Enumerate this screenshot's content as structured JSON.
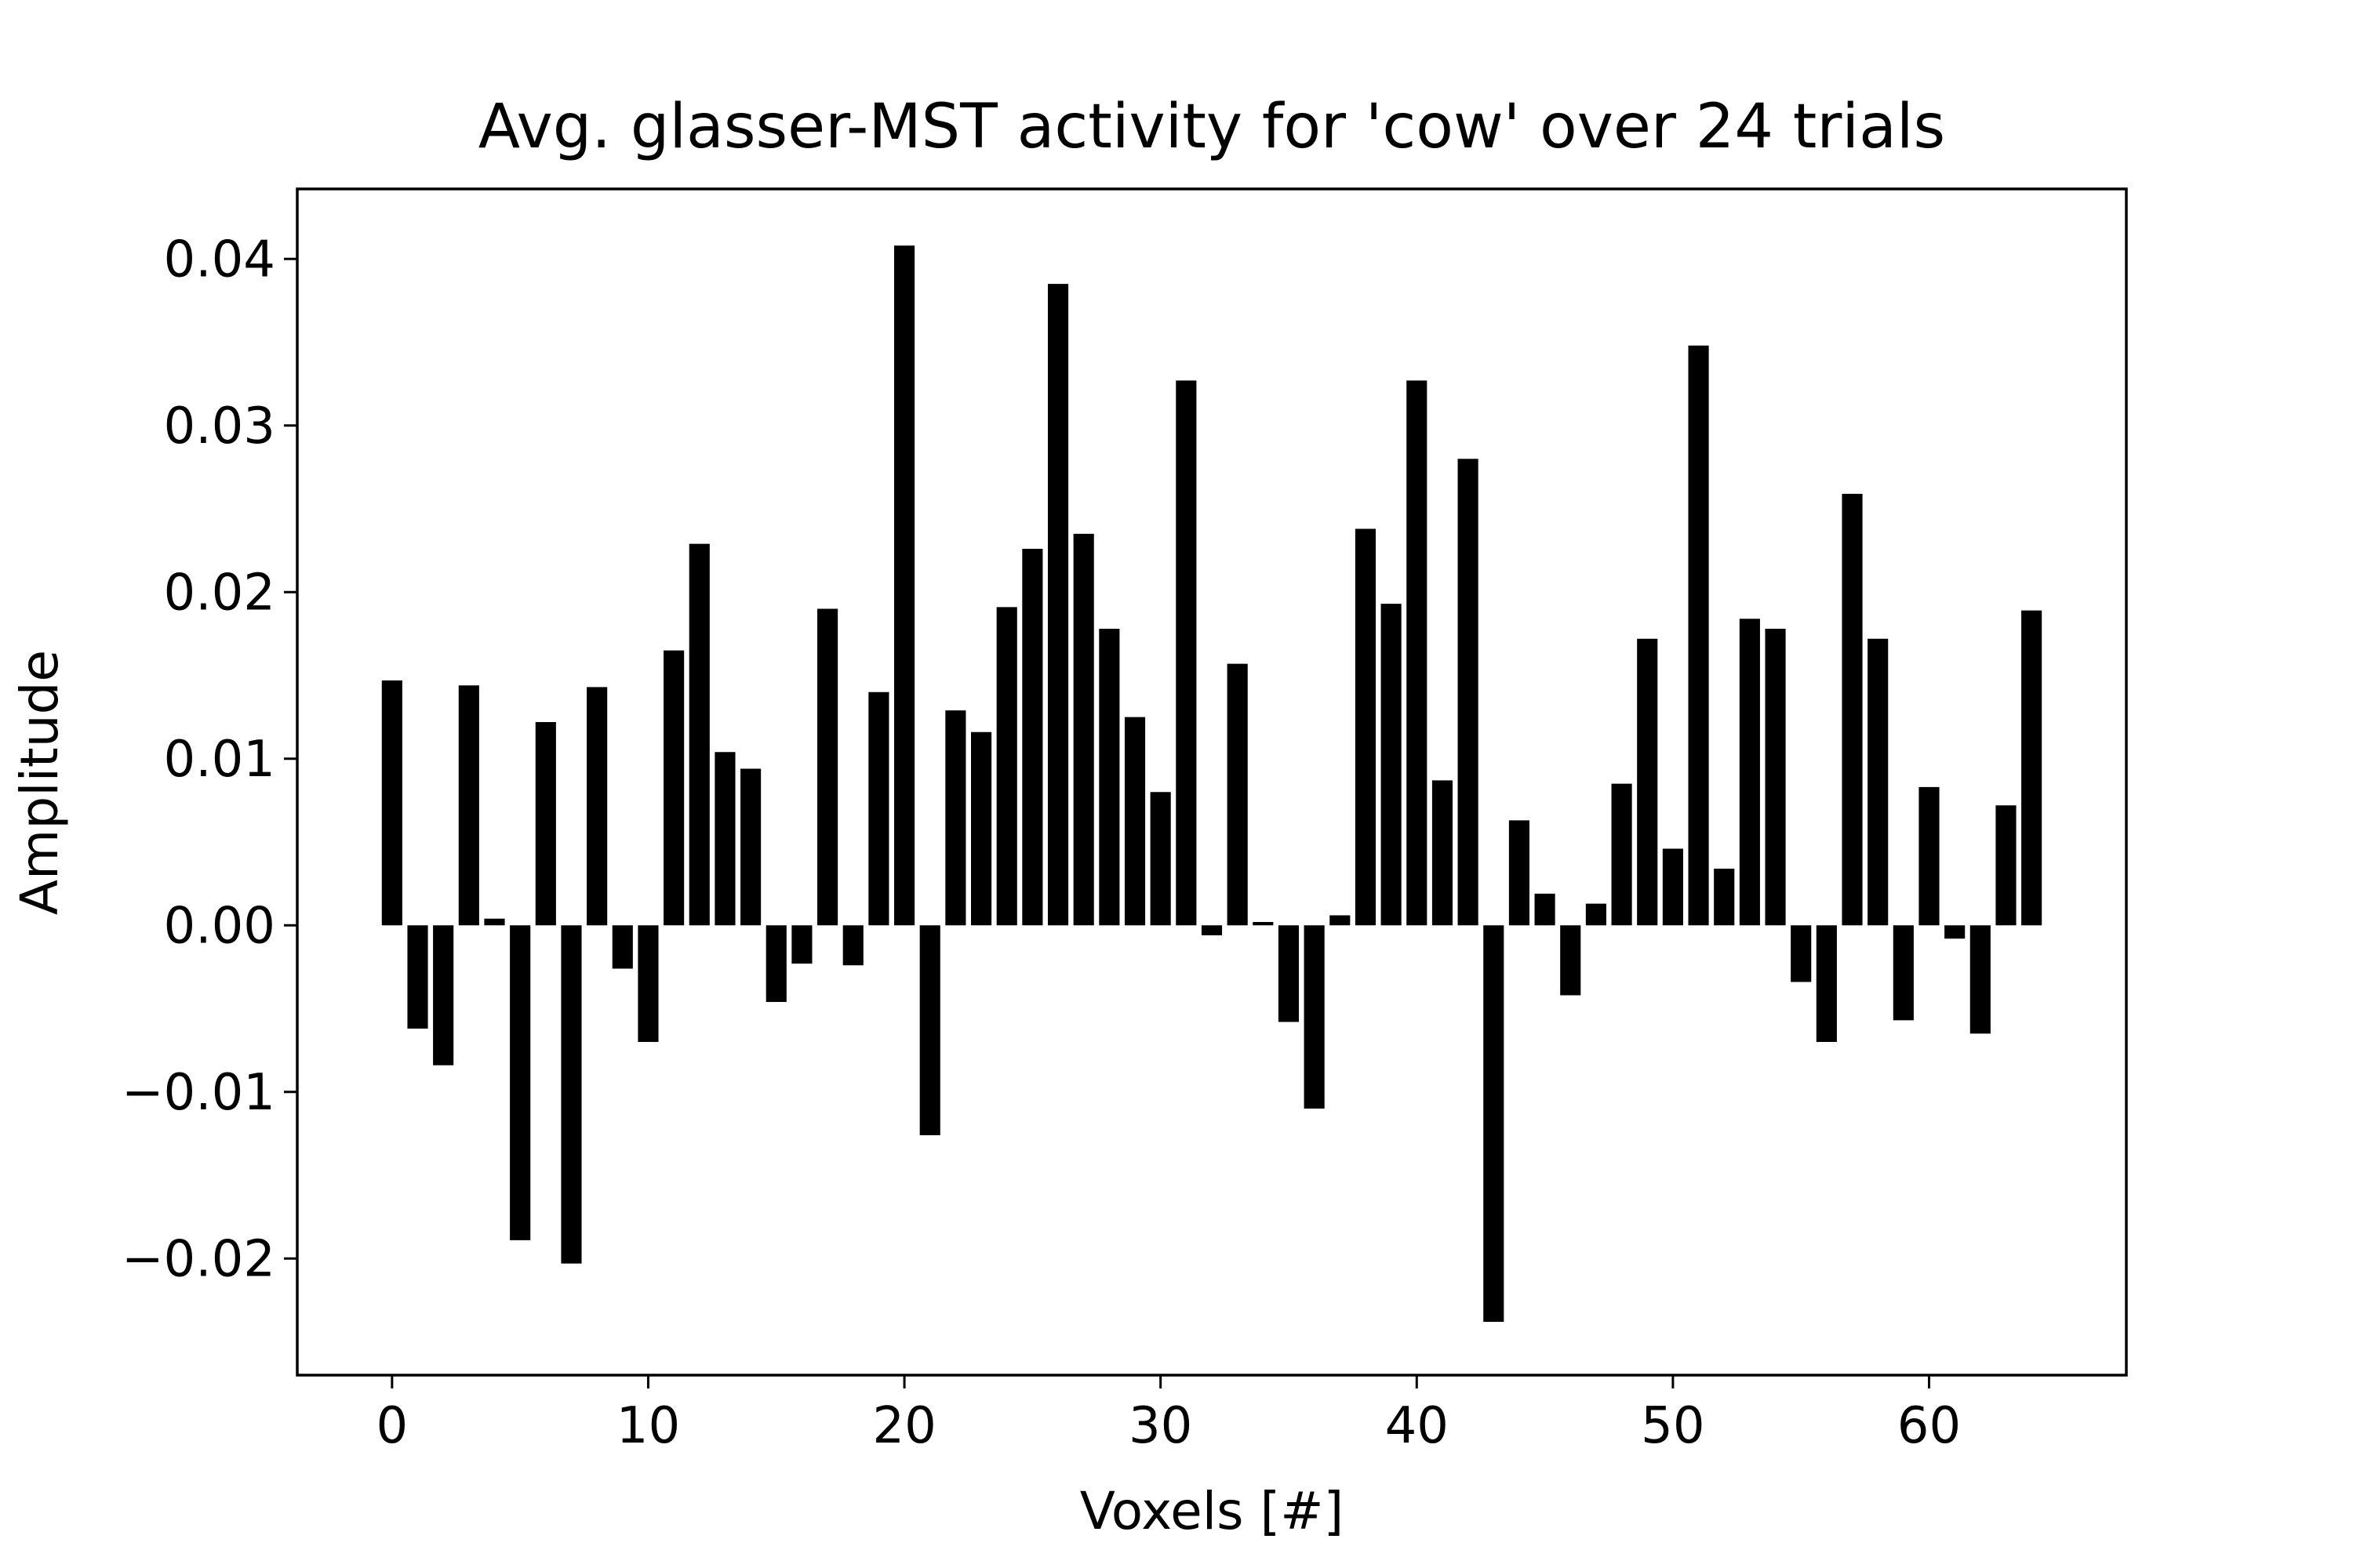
{
  "chart_data": {
    "type": "bar",
    "title": "Avg. glasser-MST activity for 'cow' over 24 trials",
    "xlabel": "Voxels [#]",
    "ylabel": "Amplitude",
    "xlim": [
      -3.7,
      67.7
    ],
    "ylim": [
      -0.027,
      0.0442
    ],
    "x_ticks": [
      0,
      10,
      20,
      30,
      40,
      50,
      60
    ],
    "x_tick_labels": [
      "0",
      "10",
      "20",
      "30",
      "40",
      "50",
      "60"
    ],
    "y_ticks": [
      -0.02,
      -0.01,
      0.0,
      0.01,
      0.02,
      0.03,
      0.04
    ],
    "y_tick_labels": [
      "−0.02",
      "−0.01",
      "0.00",
      "0.01",
      "0.02",
      "0.03",
      "0.04"
    ],
    "grid": false,
    "bar_color": "#000000",
    "series": [
      {
        "values": [
          0.0147,
          -0.0062,
          -0.0084,
          0.0144,
          0.0004,
          -0.0189,
          0.0122,
          -0.0203,
          0.0143,
          -0.0026,
          -0.007,
          0.0165,
          0.0229,
          0.0104,
          0.0094,
          -0.0046,
          -0.0023,
          0.019,
          -0.0024,
          0.014,
          0.0408,
          -0.0126,
          0.0129,
          0.0116,
          0.0191,
          0.0226,
          0.0385,
          0.0235,
          0.0178,
          0.0125,
          0.008,
          0.0327,
          -0.0006,
          0.0157,
          0.0002,
          -0.0058,
          -0.011,
          0.0006,
          0.0238,
          0.0193,
          0.0327,
          0.0087,
          0.028,
          -0.0238,
          0.0063,
          0.0019,
          -0.0042,
          0.0013,
          0.0085,
          0.0172,
          0.0046,
          0.0348,
          0.0034,
          0.0184,
          0.0178,
          -0.0034,
          -0.007,
          0.0259,
          0.0172,
          -0.0057,
          0.0083,
          -0.0008,
          -0.0065,
          0.0072,
          0.0189
        ]
      }
    ]
  }
}
